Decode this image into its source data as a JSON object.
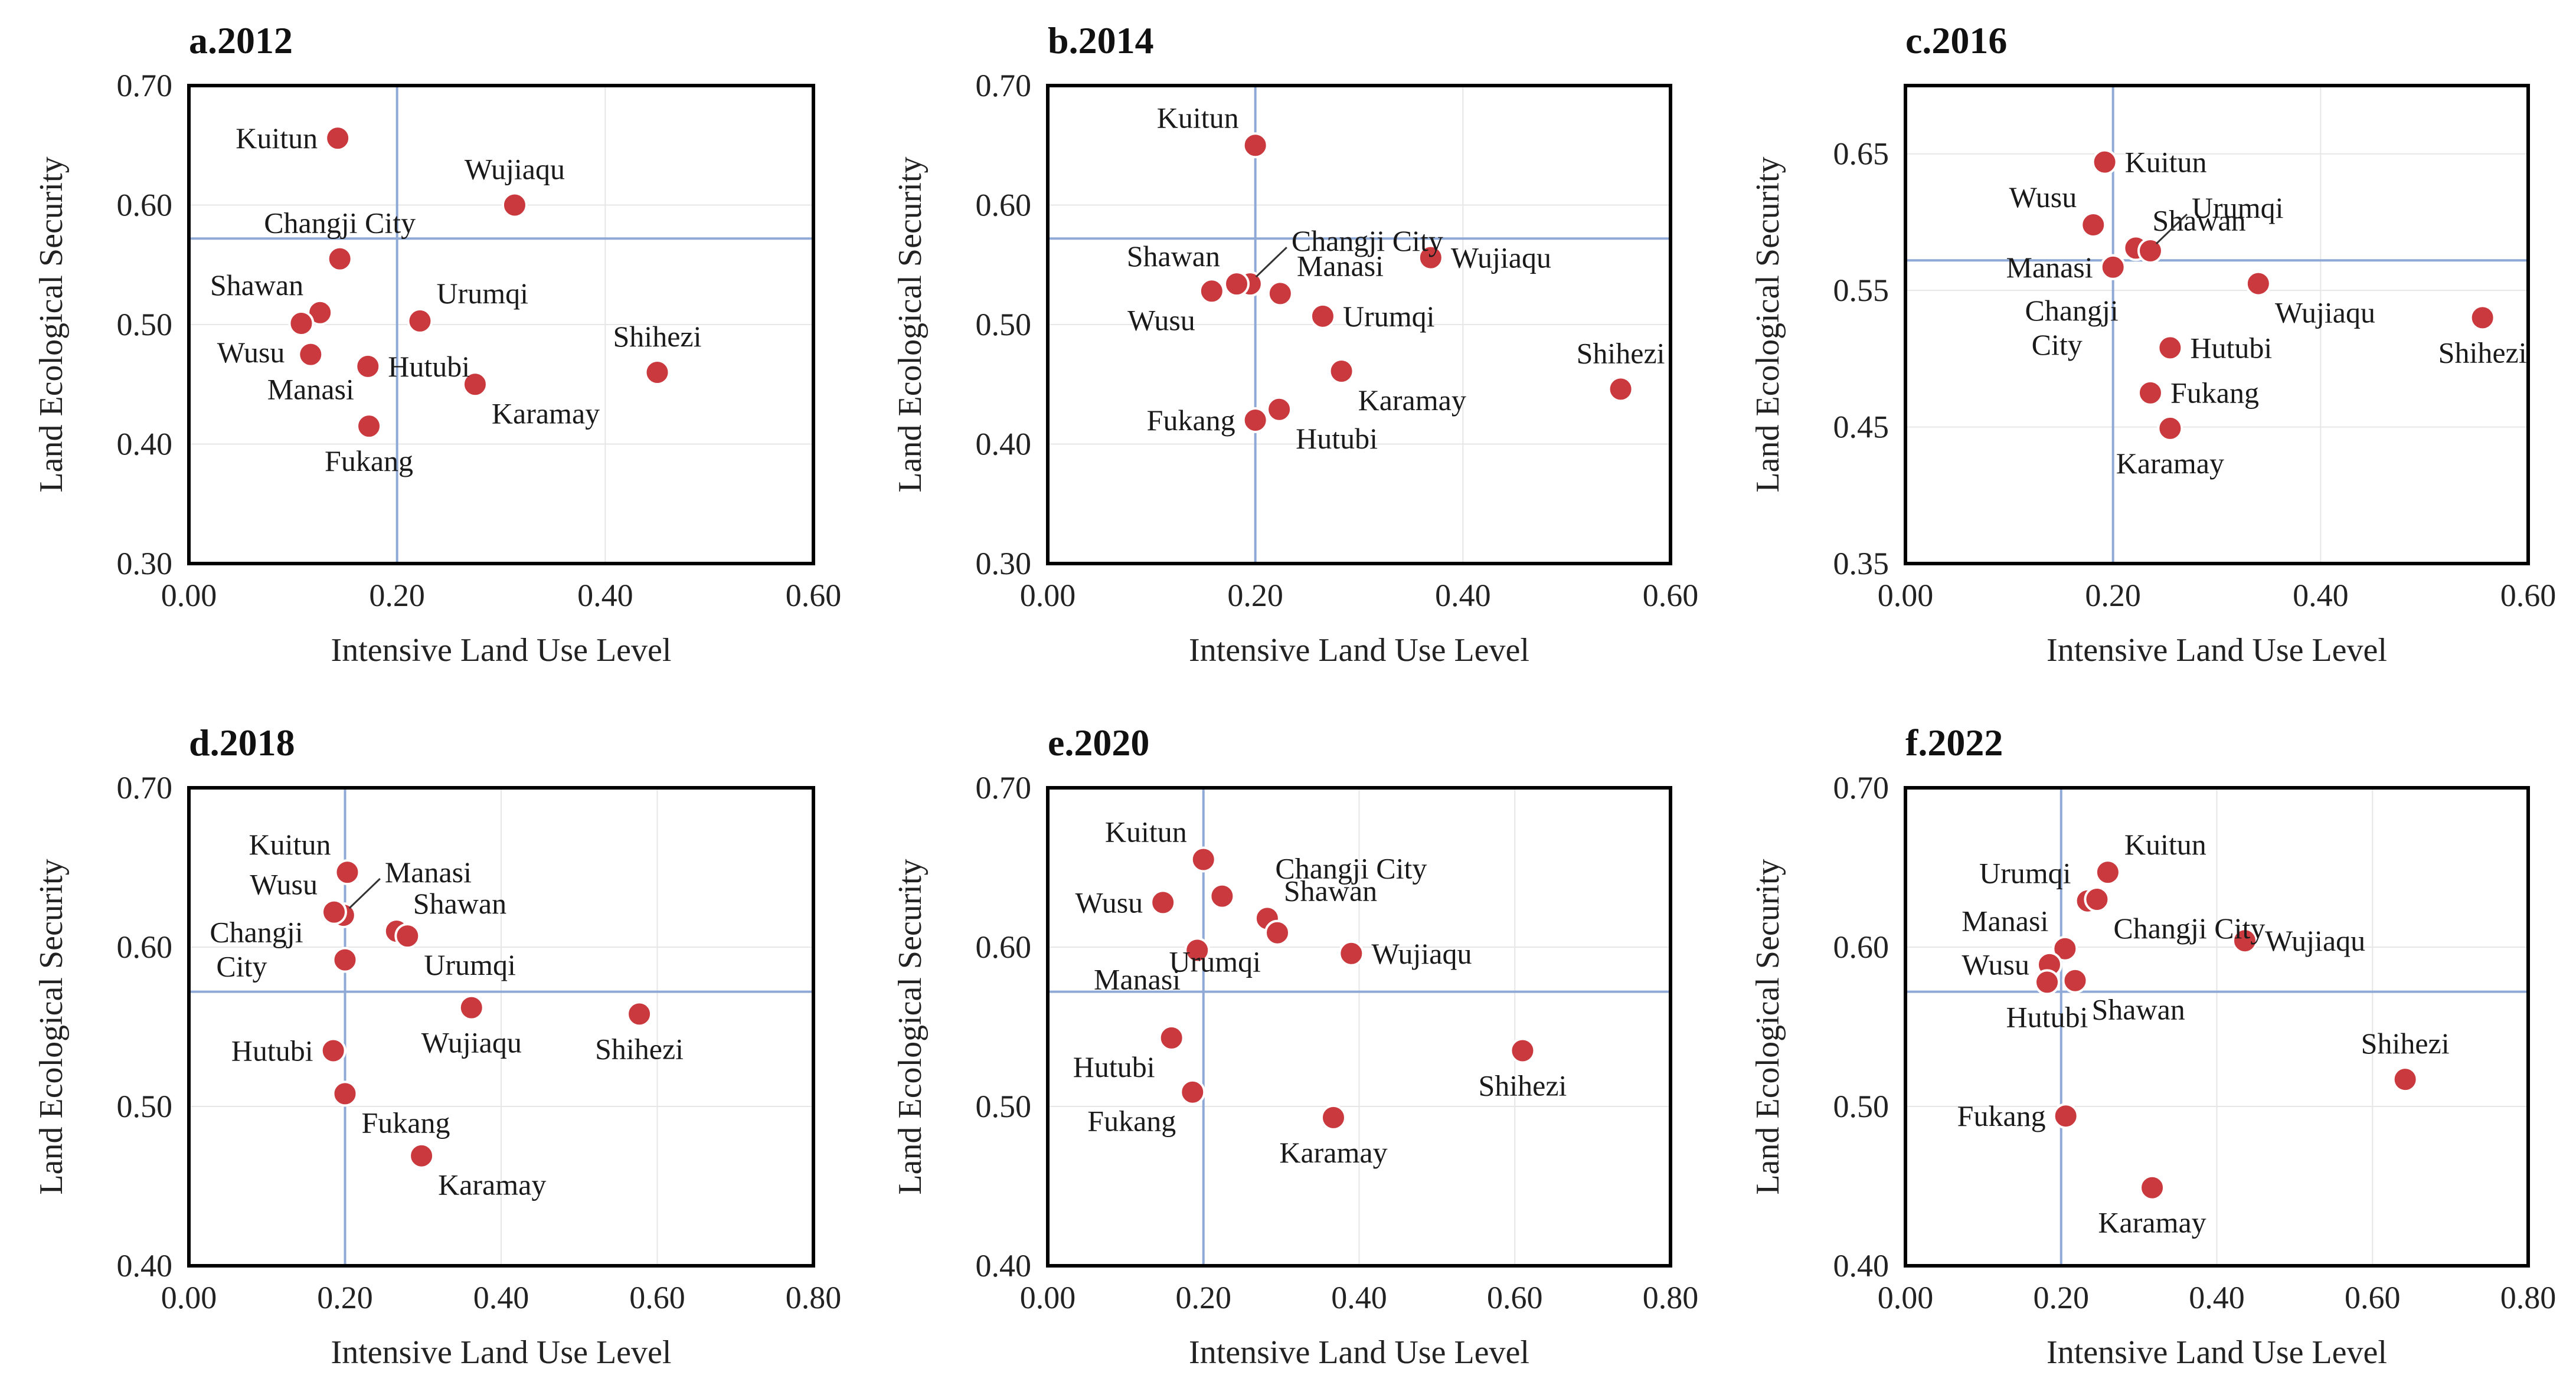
{
  "chart_data": [
    {
      "type": "scatter",
      "title": "a.2012",
      "xlabel": "Intensive Land Use Level",
      "ylabel": "Land Ecological Security",
      "xlim": [
        0,
        0.6
      ],
      "ylim": [
        0.3,
        0.7
      ],
      "xticks": [
        "0.00",
        "0.20",
        "0.40",
        "0.60"
      ],
      "yticks": [
        "0.30",
        "0.40",
        "0.50",
        "0.60",
        "0.70"
      ],
      "ref_x": 0.2,
      "ref_y": 0.572,
      "points": [
        {
          "name": "Kuitun",
          "x": 0.143,
          "y": 0.656,
          "anchor": "w"
        },
        {
          "name": "Wujiaqu",
          "x": 0.313,
          "y": 0.6,
          "anchor": "n"
        },
        {
          "name": "Changji City",
          "x": 0.145,
          "y": 0.555,
          "anchor": "n"
        },
        {
          "name": "Shawan",
          "x": 0.126,
          "y": 0.51,
          "anchor": "nw"
        },
        {
          "name": "Wusu",
          "x": 0.108,
          "y": 0.501,
          "anchor": "sw"
        },
        {
          "name": "Manasi",
          "x": 0.117,
          "y": 0.475,
          "anchor": "s"
        },
        {
          "name": "Urumqi",
          "x": 0.222,
          "y": 0.503,
          "anchor": "ne"
        },
        {
          "name": "Hutubi",
          "x": 0.172,
          "y": 0.465,
          "anchor": "e"
        },
        {
          "name": "Karamay",
          "x": 0.275,
          "y": 0.45,
          "anchor": "se"
        },
        {
          "name": "Shihezi",
          "x": 0.45,
          "y": 0.46,
          "anchor": "n"
        },
        {
          "name": "Fukang",
          "x": 0.173,
          "y": 0.415,
          "anchor": "s"
        }
      ]
    },
    {
      "type": "scatter",
      "title": "b.2014",
      "xlabel": "Intensive Land Use Level",
      "ylabel": "Land Ecological Security",
      "xlim": [
        0,
        0.6
      ],
      "ylim": [
        0.3,
        0.7
      ],
      "xticks": [
        "0.00",
        "0.20",
        "0.40",
        "0.60"
      ],
      "yticks": [
        "0.30",
        "0.40",
        "0.50",
        "0.60",
        "0.70"
      ],
      "ref_x": 0.2,
      "ref_y": 0.572,
      "points": [
        {
          "name": "Kuitun",
          "x": 0.2,
          "y": 0.65,
          "anchor": "nw"
        },
        {
          "name": "Changji City",
          "x": 0.195,
          "y": 0.534,
          "anchor": "leader-ne"
        },
        {
          "name": "Shawan",
          "x": 0.182,
          "y": 0.534,
          "anchor": "nw"
        },
        {
          "name": "Wusu",
          "x": 0.158,
          "y": 0.528,
          "anchor": "sw"
        },
        {
          "name": "Manasi",
          "x": 0.224,
          "y": 0.526,
          "anchor": "ne"
        },
        {
          "name": "Wujiaqu",
          "x": 0.369,
          "y": 0.556,
          "anchor": "e"
        },
        {
          "name": "Urumqi",
          "x": 0.265,
          "y": 0.507,
          "anchor": "e"
        },
        {
          "name": "Karamay",
          "x": 0.283,
          "y": 0.461,
          "anchor": "se"
        },
        {
          "name": "Shihezi",
          "x": 0.552,
          "y": 0.446,
          "anchor": "n"
        },
        {
          "name": "Fukang",
          "x": 0.2,
          "y": 0.42,
          "anchor": "w"
        },
        {
          "name": "Hutubi",
          "x": 0.223,
          "y": 0.429,
          "anchor": "se"
        }
      ]
    },
    {
      "type": "scatter",
      "title": "c.2016",
      "xlabel": "Intensive Land Use Level",
      "ylabel": "Land Ecological Security",
      "xlim": [
        0,
        0.6
      ],
      "ylim": [
        0.35,
        0.7
      ],
      "xticks": [
        "0.00",
        "0.20",
        "0.40",
        "0.60"
      ],
      "yticks": [
        "0.35",
        "0.45",
        "0.55",
        "0.65"
      ],
      "ref_x": 0.2,
      "ref_y": 0.572,
      "points": [
        {
          "name": "Kuitun",
          "x": 0.192,
          "y": 0.644,
          "anchor": "e"
        },
        {
          "name": "Wusu",
          "x": 0.181,
          "y": 0.598,
          "anchor": "nw"
        },
        {
          "name": "Shawan",
          "x": 0.222,
          "y": 0.581,
          "anchor": "ne"
        },
        {
          "name": "Urumqi",
          "x": 0.236,
          "y": 0.579,
          "anchor": "leader-ne"
        },
        {
          "name": "Manasi",
          "x": 0.2,
          "y": 0.567,
          "anchor": "w"
        },
        {
          "name": "Changji City",
          "x": 0.2,
          "y": 0.567,
          "anchor": "changji-c"
        },
        {
          "name": "Wujiaqu",
          "x": 0.34,
          "y": 0.555,
          "anchor": "se"
        },
        {
          "name": "Shihezi",
          "x": 0.556,
          "y": 0.53,
          "anchor": "s"
        },
        {
          "name": "Hutubi",
          "x": 0.255,
          "y": 0.508,
          "anchor": "e"
        },
        {
          "name": "Fukang",
          "x": 0.236,
          "y": 0.475,
          "anchor": "e"
        },
        {
          "name": "Karamay",
          "x": 0.255,
          "y": 0.449,
          "anchor": "s"
        }
      ]
    },
    {
      "type": "scatter",
      "title": "d.2018",
      "xlabel": "Intensive Land Use Level",
      "ylabel": "Land Ecological Security",
      "xlim": [
        0,
        0.8
      ],
      "ylim": [
        0.4,
        0.7
      ],
      "xticks": [
        "0.00",
        "0.20",
        "0.40",
        "0.60",
        "0.80"
      ],
      "yticks": [
        "0.40",
        "0.50",
        "0.60",
        "0.70"
      ],
      "ref_x": 0.2,
      "ref_y": 0.572,
      "points": [
        {
          "name": "Kuitun",
          "x": 0.203,
          "y": 0.647,
          "anchor": "nw"
        },
        {
          "name": "Manasi",
          "x": 0.198,
          "y": 0.62,
          "anchor": "leader-ne"
        },
        {
          "name": "Wusu",
          "x": 0.186,
          "y": 0.622,
          "anchor": "nw"
        },
        {
          "name": "Shawan",
          "x": 0.266,
          "y": 0.61,
          "anchor": "ne"
        },
        {
          "name": "Urumqi",
          "x": 0.28,
          "y": 0.607,
          "anchor": "se"
        },
        {
          "name": "Changji City",
          "x": 0.2,
          "y": 0.592,
          "anchor": "changji-d"
        },
        {
          "name": "Wujiaqu",
          "x": 0.362,
          "y": 0.562,
          "anchor": "s"
        },
        {
          "name": "Shihezi",
          "x": 0.577,
          "y": 0.558,
          "anchor": "s"
        },
        {
          "name": "Hutubi",
          "x": 0.185,
          "y": 0.535,
          "anchor": "w"
        },
        {
          "name": "Fukang",
          "x": 0.2,
          "y": 0.508,
          "anchor": "se"
        },
        {
          "name": "Karamay",
          "x": 0.298,
          "y": 0.469,
          "anchor": "se"
        }
      ]
    },
    {
      "type": "scatter",
      "title": "e.2020",
      "xlabel": "Intensive Land Use Level",
      "ylabel": "Land Ecological Security",
      "xlim": [
        0,
        0.8
      ],
      "ylim": [
        0.4,
        0.7
      ],
      "xticks": [
        "0.00",
        "0.20",
        "0.40",
        "0.60",
        "0.80"
      ],
      "yticks": [
        "0.40",
        "0.50",
        "0.60",
        "0.70"
      ],
      "ref_x": 0.2,
      "ref_y": 0.572,
      "points": [
        {
          "name": "Kuitun",
          "x": 0.2,
          "y": 0.655,
          "anchor": "nw"
        },
        {
          "name": "Changji City",
          "x": 0.224,
          "y": 0.632,
          "anchor": "changji-e"
        },
        {
          "name": "Wusu",
          "x": 0.148,
          "y": 0.628,
          "anchor": "w"
        },
        {
          "name": "Shawan",
          "x": 0.282,
          "y": 0.618,
          "anchor": "ne"
        },
        {
          "name": "Urumqi",
          "x": 0.295,
          "y": 0.609,
          "anchor": "sw"
        },
        {
          "name": "Manasi",
          "x": 0.192,
          "y": 0.598,
          "anchor": "sw"
        },
        {
          "name": "Wujiaqu",
          "x": 0.39,
          "y": 0.596,
          "anchor": "e"
        },
        {
          "name": "Hutubi",
          "x": 0.159,
          "y": 0.543,
          "anchor": "sw"
        },
        {
          "name": "Shihezi",
          "x": 0.61,
          "y": 0.535,
          "anchor": "s"
        },
        {
          "name": "Fukang",
          "x": 0.186,
          "y": 0.509,
          "anchor": "sw"
        },
        {
          "name": "Karamay",
          "x": 0.367,
          "y": 0.493,
          "anchor": "s"
        }
      ]
    },
    {
      "type": "scatter",
      "title": "f.2022",
      "xlabel": "Intensive Land Use Level",
      "ylabel": "Land Ecological Security",
      "xlim": [
        0,
        0.8
      ],
      "ylim": [
        0.4,
        0.7
      ],
      "xticks": [
        "0.00",
        "0.20",
        "0.40",
        "0.60",
        "0.80"
      ],
      "yticks": [
        "0.40",
        "0.50",
        "0.60",
        "0.70"
      ],
      "ref_x": 0.2,
      "ref_y": 0.572,
      "points": [
        {
          "name": "Kuitun",
          "x": 0.26,
          "y": 0.647,
          "anchor": "ne"
        },
        {
          "name": "Urumqi",
          "x": 0.234,
          "y": 0.629,
          "anchor": "nw"
        },
        {
          "name": "Changji City",
          "x": 0.246,
          "y": 0.63,
          "anchor": "se"
        },
        {
          "name": "Manasi",
          "x": 0.205,
          "y": 0.599,
          "anchor": "nw"
        },
        {
          "name": "Wusu",
          "x": 0.185,
          "y": 0.589,
          "anchor": "w"
        },
        {
          "name": "Hutubi",
          "x": 0.182,
          "y": 0.578,
          "anchor": "s"
        },
        {
          "name": "Shawan",
          "x": 0.218,
          "y": 0.579,
          "anchor": "se"
        },
        {
          "name": "Wujiaqu",
          "x": 0.436,
          "y": 0.604,
          "anchor": "e"
        },
        {
          "name": "Shihezi",
          "x": 0.642,
          "y": 0.517,
          "anchor": "n"
        },
        {
          "name": "Fukang",
          "x": 0.206,
          "y": 0.494,
          "anchor": "w"
        },
        {
          "name": "Karamay",
          "x": 0.317,
          "y": 0.449,
          "anchor": "s"
        }
      ]
    }
  ]
}
